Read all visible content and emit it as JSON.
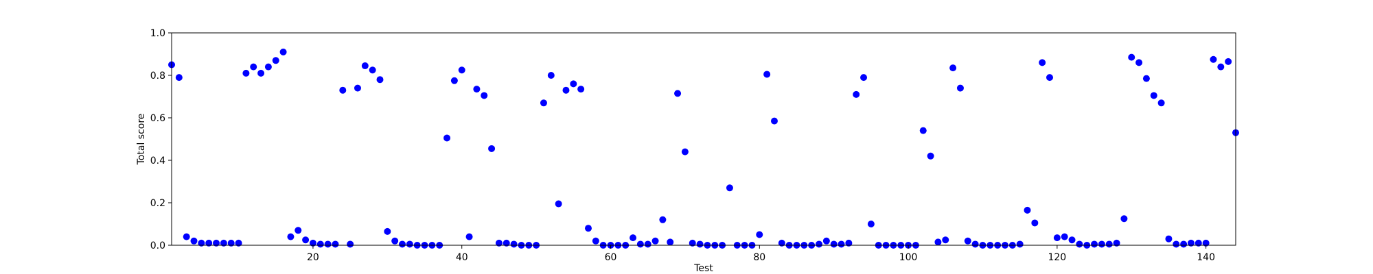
{
  "chart_data": {
    "type": "scatter",
    "xlabel": "Test",
    "ylabel": "Total score",
    "xlim": [
      1,
      144
    ],
    "ylim": [
      0.0,
      1.0
    ],
    "xticks": [
      20,
      40,
      60,
      80,
      100,
      120,
      140
    ],
    "xtick_labels": [
      "20",
      "40",
      "60",
      "80",
      "100",
      "120",
      "140"
    ],
    "yticks": [
      0.0,
      0.2,
      0.4,
      0.6,
      0.8,
      1.0
    ],
    "ytick_labels": [
      "0.0",
      "0.2",
      "0.4",
      "0.6",
      "0.8",
      "1.0"
    ],
    "grid": false,
    "marker_color": "#0000ff",
    "series": [
      {
        "x": [
          1,
          2,
          3,
          4,
          5,
          6,
          7,
          8,
          9,
          10,
          11,
          12,
          13,
          14,
          15,
          16,
          17,
          18,
          19,
          20,
          21,
          22,
          23,
          24,
          25,
          26,
          27,
          28,
          29,
          30,
          31,
          32,
          33,
          34,
          35,
          36,
          37,
          38,
          39,
          40,
          41,
          42,
          43,
          44,
          45,
          46,
          47,
          48,
          49,
          50,
          51,
          52,
          53,
          54,
          55,
          56,
          57,
          58,
          59,
          60,
          61,
          62,
          63,
          64,
          65,
          66,
          67,
          68,
          69,
          70,
          71,
          72,
          73,
          74,
          75,
          76,
          77,
          78,
          79,
          80,
          81,
          82,
          83,
          84,
          85,
          86,
          87,
          88,
          89,
          90,
          91,
          92,
          93,
          94,
          95,
          96,
          97,
          98,
          99,
          100,
          101,
          102,
          103,
          104,
          105,
          106,
          107,
          108,
          109,
          110,
          111,
          112,
          113,
          114,
          115,
          116,
          117,
          118,
          119,
          120,
          121,
          122,
          123,
          124,
          125,
          126,
          127,
          128,
          129,
          130,
          131,
          132,
          133,
          134,
          135,
          136,
          137,
          138,
          139,
          140,
          141,
          142,
          143,
          144
        ],
        "y": [
          0.85,
          0.79,
          0.04,
          0.02,
          0.01,
          0.01,
          0.01,
          0.01,
          0.01,
          0.01,
          0.81,
          0.84,
          0.81,
          0.84,
          0.87,
          0.91,
          0.04,
          0.07,
          0.025,
          0.01,
          0.005,
          0.005,
          0.005,
          0.73,
          0.005,
          0.74,
          0.845,
          0.825,
          0.78,
          0.065,
          0.02,
          0.005,
          0.005,
          0.0,
          0.0,
          0.0,
          0.0,
          0.505,
          0.775,
          0.825,
          0.04,
          0.735,
          0.705,
          0.455,
          0.01,
          0.01,
          0.005,
          0.0,
          0.0,
          0.0,
          0.67,
          0.8,
          0.195,
          0.73,
          0.76,
          0.735,
          0.08,
          0.02,
          0.0,
          0.0,
          0.0,
          0.0,
          0.035,
          0.005,
          0.005,
          0.02,
          0.12,
          0.015,
          0.715,
          0.44,
          0.01,
          0.005,
          0.0,
          0.0,
          0.0,
          0.27,
          0.0,
          0.0,
          0.0,
          0.05,
          0.805,
          0.585,
          0.01,
          0.0,
          0.0,
          0.0,
          0.0,
          0.005,
          0.02,
          0.005,
          0.005,
          0.01,
          0.71,
          0.79,
          0.1,
          0.0,
          0.0,
          0.0,
          0.0,
          0.0,
          0.0,
          0.54,
          0.42,
          0.015,
          0.025,
          0.835,
          0.74,
          0.02,
          0.005,
          0.0,
          0.0,
          0.0,
          0.0,
          0.0,
          0.005,
          0.165,
          0.105,
          0.86,
          0.79,
          0.035,
          0.04,
          0.025,
          0.005,
          0.0,
          0.005,
          0.005,
          0.005,
          0.01,
          0.125,
          0.885,
          0.86,
          0.785,
          0.705,
          0.67,
          0.03,
          0.005,
          0.005,
          0.01,
          0.01,
          0.01,
          0.875,
          0.84,
          0.865,
          0.53
        ]
      }
    ]
  }
}
